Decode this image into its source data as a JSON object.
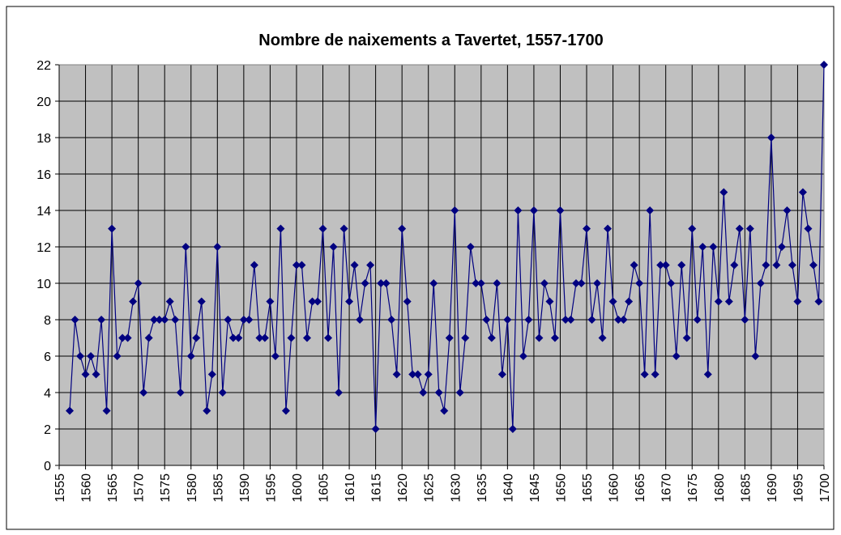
{
  "chart_data": {
    "type": "line",
    "title": "Nombre de naixements a Tavertet, 1557-1700",
    "x": [
      1557,
      1558,
      1559,
      1560,
      1561,
      1562,
      1563,
      1564,
      1565,
      1566,
      1567,
      1568,
      1569,
      1570,
      1571,
      1572,
      1573,
      1574,
      1575,
      1576,
      1577,
      1578,
      1579,
      1580,
      1581,
      1582,
      1583,
      1584,
      1585,
      1586,
      1587,
      1588,
      1589,
      1590,
      1591,
      1592,
      1593,
      1594,
      1595,
      1596,
      1597,
      1598,
      1599,
      1600,
      1601,
      1602,
      1603,
      1604,
      1605,
      1606,
      1607,
      1608,
      1609,
      1610,
      1611,
      1612,
      1613,
      1614,
      1615,
      1616,
      1617,
      1618,
      1619,
      1620,
      1621,
      1622,
      1623,
      1624,
      1625,
      1626,
      1627,
      1628,
      1629,
      1630,
      1631,
      1632,
      1633,
      1634,
      1635,
      1636,
      1637,
      1638,
      1639,
      1640,
      1641,
      1642,
      1643,
      1644,
      1645,
      1646,
      1647,
      1648,
      1649,
      1650,
      1651,
      1652,
      1653,
      1654,
      1655,
      1656,
      1657,
      1658,
      1659,
      1660,
      1661,
      1662,
      1663,
      1664,
      1665,
      1666,
      1667,
      1668,
      1669,
      1670,
      1671,
      1672,
      1673,
      1674,
      1675,
      1676,
      1677,
      1678,
      1679,
      1680,
      1681,
      1682,
      1683,
      1684,
      1685,
      1686,
      1687,
      1688,
      1689,
      1690,
      1691,
      1692,
      1693,
      1694,
      1695,
      1696,
      1697,
      1698,
      1699,
      1700
    ],
    "series": [
      {
        "color": "#000080",
        "values": [
          3,
          8,
          6,
          5,
          6,
          5,
          8,
          3,
          13,
          6,
          7,
          7,
          9,
          10,
          4,
          7,
          8,
          8,
          8,
          9,
          8,
          4,
          12,
          6,
          7,
          9,
          3,
          5,
          12,
          4,
          8,
          7,
          7,
          8,
          8,
          11,
          7,
          7,
          9,
          6,
          13,
          3,
          7,
          11,
          11,
          7,
          9,
          9,
          13,
          7,
          12,
          4,
          13,
          9,
          11,
          8,
          10,
          11,
          2,
          10,
          10,
          8,
          5,
          13,
          9,
          5,
          5,
          4,
          5,
          10,
          4,
          3,
          7,
          14,
          4,
          7,
          12,
          10,
          10,
          8,
          7,
          10,
          5,
          8,
          2,
          14,
          6,
          8,
          14,
          7,
          10,
          9,
          7,
          14,
          8,
          8,
          10,
          10,
          13,
          8,
          10,
          7,
          13,
          9,
          8,
          8,
          9,
          11,
          10,
          5,
          14,
          5,
          11,
          11,
          10,
          6,
          11,
          7,
          13,
          8,
          12,
          5,
          12,
          9,
          15,
          9,
          11,
          13,
          8,
          13,
          6,
          10,
          11,
          18,
          11,
          12,
          14,
          11,
          9,
          15,
          13,
          11,
          9,
          22
        ]
      }
    ],
    "xlim": [
      1555,
      1700
    ],
    "xticks": [
      1555,
      1560,
      1565,
      1570,
      1575,
      1580,
      1585,
      1590,
      1595,
      1600,
      1605,
      1610,
      1615,
      1620,
      1625,
      1630,
      1635,
      1640,
      1645,
      1650,
      1655,
      1660,
      1665,
      1670,
      1675,
      1680,
      1685,
      1690,
      1695,
      1700
    ],
    "ylim": [
      0,
      22
    ],
    "yticks": [
      0,
      2,
      4,
      6,
      8,
      10,
      12,
      14,
      16,
      18,
      20,
      22
    ],
    "grid": true
  }
}
